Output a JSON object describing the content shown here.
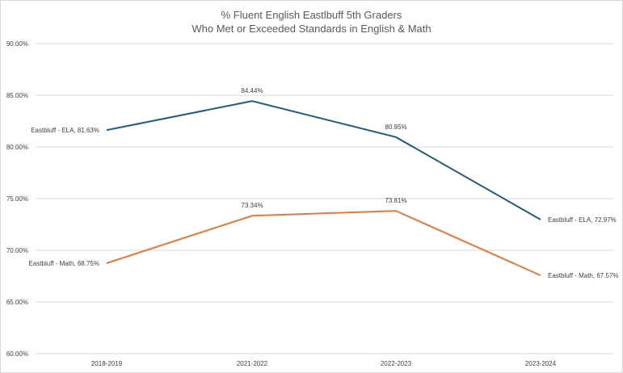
{
  "chart_data": {
    "type": "line",
    "title_line1": "% Fluent English Eastlbuff 5th Graders",
    "title_line2": "Who Met or Exceeded Standards in English & Math",
    "xlabel": "",
    "ylabel": "",
    "ylim": [
      60,
      90
    ],
    "y_ticks": [
      60,
      65,
      70,
      75,
      80,
      85,
      90
    ],
    "y_tick_format": "percent_2dp",
    "grid": true,
    "legend": "none",
    "categories": [
      "2018-2019",
      "2021-2022",
      "2022-2023",
      "2023-2024"
    ],
    "series": [
      {
        "name": "Eastbluff - ELA",
        "color": "#1f5c7a",
        "values": [
          81.63,
          84.44,
          80.95,
          72.97
        ],
        "labels": [
          "Eastbluff - ELA, 81.63%",
          "84.44%",
          "80.95%",
          "Eastbluff - ELA, 72.97%"
        ]
      },
      {
        "name": "Eastbluff - Math",
        "color": "#e8773a",
        "values": [
          68.75,
          73.34,
          73.81,
          67.57
        ],
        "labels": [
          "Eastbluff - Math, 68.75%",
          "73.34%",
          "73.81%",
          "Eastbluff - Math, 67.57%"
        ]
      }
    ]
  }
}
